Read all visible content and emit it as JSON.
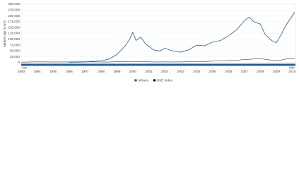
{
  "chart_data": {
    "type": "line",
    "y_label": "Market cap (crore)",
    "x": [
      1993,
      1994,
      1995,
      1996,
      1997,
      1998,
      1998.5,
      1999,
      1999.5,
      1999.8,
      2000,
      2000.2,
      2000.5,
      2000.8,
      2001,
      2001.3,
      2001.7,
      2002,
      2002.5,
      2003,
      2003.5,
      2004,
      2004.5,
      2005,
      2005.5,
      2006,
      2006.5,
      2007,
      2007.3,
      2007.6,
      2008,
      2008.3,
      2008.7,
      2009,
      2009.3,
      2009.6,
      2010,
      2010.15
    ],
    "series": [
      {
        "name": "Infosys",
        "color": "#1f5fa8",
        "values": [
          null,
          null,
          null,
          2000,
          3000,
          8000,
          15000,
          35000,
          70000,
          100000,
          130000,
          95000,
          110000,
          80000,
          70000,
          55000,
          50000,
          62000,
          50000,
          45000,
          55000,
          75000,
          72000,
          88000,
          95000,
          115000,
          140000,
          180000,
          195000,
          175000,
          165000,
          120000,
          95000,
          85000,
          120000,
          160000,
          200000,
          215000
        ]
      },
      {
        "name": "BSE Index",
        "color": "#111111",
        "values": [
          2500,
          3500,
          3000,
          3200,
          3600,
          3100,
          3000,
          4000,
          4800,
          5000,
          5500,
          4600,
          4300,
          3800,
          3600,
          3300,
          3100,
          3400,
          3200,
          3300,
          3800,
          5500,
          5000,
          6500,
          7500,
          9500,
          10500,
          13500,
          14500,
          16000,
          17500,
          14000,
          11000,
          9500,
          11500,
          15500,
          17000,
          17500
        ]
      }
    ],
    "xlim": [
      1993,
      2010.2
    ],
    "xticks": [
      1993,
      1994,
      1995,
      1996,
      1997,
      1998,
      1999,
      2000,
      2001,
      2002,
      2003,
      2004,
      2005,
      2006,
      2007,
      2008,
      2009,
      2010
    ],
    "ylim": [
      0,
      250000
    ],
    "yticks": [
      0,
      {
        "value": 25000,
        "label": "25,000"
      },
      {
        "value": 50000,
        "label": "50,000"
      },
      {
        "value": 75000,
        "label": "75,000"
      },
      {
        "value": 100000,
        "label": "100,000"
      },
      {
        "value": 125000,
        "label": "125,000"
      },
      {
        "value": 150000,
        "label": "150,000"
      },
      {
        "value": 175000,
        "label": "175,000"
      },
      {
        "value": 200000,
        "label": "200,000"
      },
      {
        "value": 225000,
        "label": "225,000"
      },
      {
        "value": 250000,
        "label": "250,000"
      }
    ],
    "navigator": {
      "start_label": "Jan",
      "end_label": "Mar",
      "color": "#1f5fa8"
    }
  }
}
